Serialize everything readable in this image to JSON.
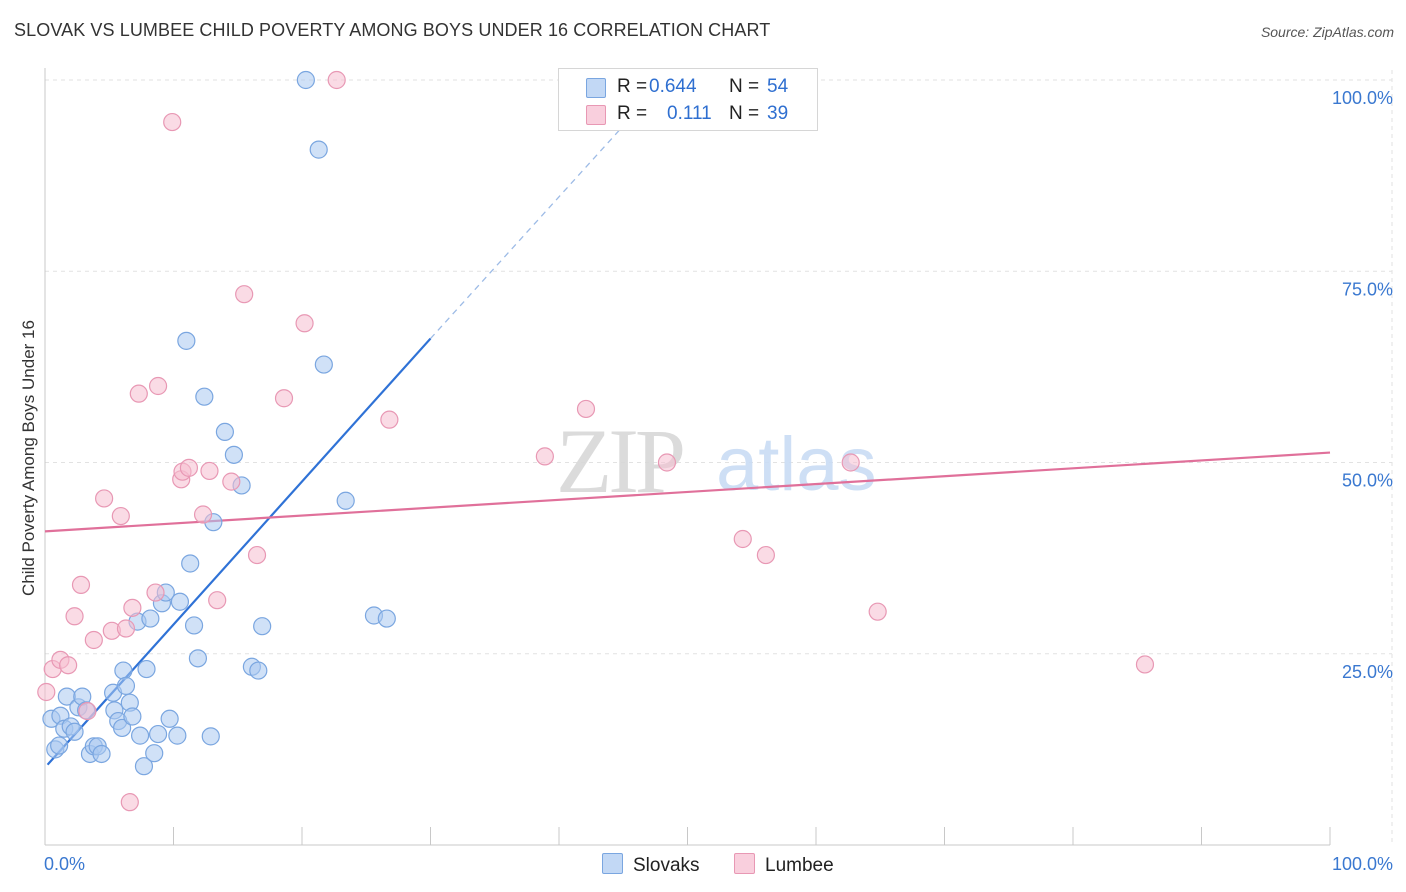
{
  "title": "SLOVAK VS LUMBEE CHILD POVERTY AMONG BOYS UNDER 16 CORRELATION CHART",
  "source": "Source: ZipAtlas.com",
  "watermark": {
    "zip": "ZIP",
    "atlas": "atlas"
  },
  "colors": {
    "slovaks_fill": "#a9c8f0",
    "slovaks_stroke": "#7aa6e0",
    "slovaks_line": "#2f72d6",
    "lumbee_fill": "#f5bdd0",
    "lumbee_stroke": "#e898b4",
    "lumbee_line": "#e0709a",
    "axis_text": "#3a78d0",
    "grid": "#e2e2e2"
  },
  "legend": {
    "rows": [
      {
        "r_label": "R =",
        "r_value": "0.644",
        "n_label": "N =",
        "n_value": "54"
      },
      {
        "r_label": "R =",
        "r_value": "0.111",
        "n_label": "N =",
        "n_value": "39"
      }
    ]
  },
  "bottom_legend": {
    "slovaks": "Slovaks",
    "lumbee": "Lumbee"
  },
  "chart_data": {
    "type": "scatter",
    "xlabel": "",
    "ylabel": "Child Poverty Among Boys Under 16",
    "xlim": [
      0,
      100
    ],
    "ylim": [
      0,
      100
    ],
    "x_tick_labels": [
      "0.0%",
      "100.0%"
    ],
    "y_tick_labels": [
      "25.0%",
      "50.0%",
      "75.0%",
      "100.0%"
    ],
    "y_ticks": [
      25,
      50,
      75,
      100
    ],
    "grid": true,
    "series": [
      {
        "name": "Slovaks",
        "trendline": {
          "x": [
            0.2,
            30.0
          ],
          "y": [
            10.5,
            66.2
          ],
          "dashed_to": [
            45.0,
            94.0
          ]
        },
        "points": [
          [
            0.5,
            16.5
          ],
          [
            0.8,
            12.5
          ],
          [
            1.1,
            13.0
          ],
          [
            1.2,
            16.9
          ],
          [
            1.5,
            15.2
          ],
          [
            1.7,
            19.4
          ],
          [
            2.0,
            15.5
          ],
          [
            2.3,
            14.8
          ],
          [
            2.6,
            18.0
          ],
          [
            2.9,
            19.4
          ],
          [
            3.2,
            17.6
          ],
          [
            3.5,
            11.9
          ],
          [
            3.8,
            12.9
          ],
          [
            4.1,
            12.9
          ],
          [
            4.4,
            11.9
          ],
          [
            5.4,
            17.6
          ],
          [
            5.3,
            19.9
          ],
          [
            5.7,
            16.2
          ],
          [
            6.0,
            15.3
          ],
          [
            6.1,
            22.8
          ],
          [
            6.3,
            20.8
          ],
          [
            6.6,
            18.6
          ],
          [
            6.8,
            16.8
          ],
          [
            7.2,
            29.2
          ],
          [
            7.4,
            14.3
          ],
          [
            7.7,
            10.3
          ],
          [
            7.9,
            23.0
          ],
          [
            8.2,
            29.6
          ],
          [
            8.5,
            12.0
          ],
          [
            8.8,
            14.5
          ],
          [
            9.1,
            31.6
          ],
          [
            9.4,
            33.0
          ],
          [
            9.7,
            16.5
          ],
          [
            10.3,
            14.3
          ],
          [
            10.5,
            31.8
          ],
          [
            11.0,
            65.9
          ],
          [
            11.3,
            36.8
          ],
          [
            11.6,
            28.7
          ],
          [
            11.9,
            24.4
          ],
          [
            12.4,
            58.6
          ],
          [
            12.9,
            14.2
          ],
          [
            13.1,
            42.2
          ],
          [
            14.0,
            54.0
          ],
          [
            14.7,
            51.0
          ],
          [
            15.3,
            47.0
          ],
          [
            16.1,
            23.3
          ],
          [
            16.6,
            22.8
          ],
          [
            16.9,
            28.6
          ],
          [
            20.3,
            100.0
          ],
          [
            21.3,
            90.9
          ],
          [
            21.7,
            62.8
          ],
          [
            23.4,
            45.0
          ],
          [
            25.6,
            30.0
          ],
          [
            26.6,
            29.6
          ]
        ]
      },
      {
        "name": "Lumbee",
        "trendline": {
          "x": [
            0.0,
            100.0
          ],
          "y": [
            41.0,
            51.3
          ]
        },
        "points": [
          [
            0.1,
            20.0
          ],
          [
            0.6,
            23.0
          ],
          [
            1.2,
            24.2
          ],
          [
            1.8,
            23.5
          ],
          [
            2.3,
            29.9
          ],
          [
            2.8,
            34.0
          ],
          [
            3.3,
            17.5
          ],
          [
            3.8,
            26.8
          ],
          [
            4.6,
            45.3
          ],
          [
            5.2,
            28.0
          ],
          [
            5.9,
            43.0
          ],
          [
            6.3,
            28.3
          ],
          [
            6.6,
            5.6
          ],
          [
            6.8,
            31.0
          ],
          [
            7.3,
            59.0
          ],
          [
            8.6,
            33.0
          ],
          [
            8.8,
            60.0
          ],
          [
            9.9,
            94.5
          ],
          [
            10.6,
            47.8
          ],
          [
            10.7,
            48.8
          ],
          [
            11.2,
            49.3
          ],
          [
            12.3,
            43.2
          ],
          [
            12.8,
            48.9
          ],
          [
            13.4,
            32.0
          ],
          [
            14.5,
            47.5
          ],
          [
            15.5,
            72.0
          ],
          [
            16.5,
            37.9
          ],
          [
            18.6,
            58.4
          ],
          [
            20.2,
            68.2
          ],
          [
            22.7,
            100.0
          ],
          [
            26.8,
            55.6
          ],
          [
            38.9,
            50.8
          ],
          [
            42.1,
            57.0
          ],
          [
            48.4,
            50.0
          ],
          [
            54.3,
            40.0
          ],
          [
            56.1,
            37.9
          ],
          [
            62.7,
            50.0
          ],
          [
            64.8,
            30.5
          ],
          [
            85.6,
            23.6
          ]
        ]
      }
    ]
  }
}
